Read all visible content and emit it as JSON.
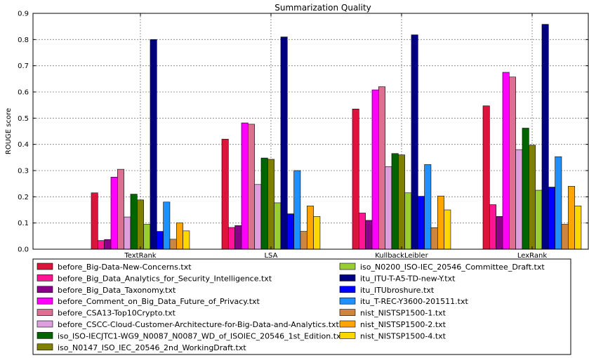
{
  "chart_data": {
    "type": "bar",
    "title": "Summarization Quality",
    "xlabel": "",
    "ylabel": "ROUGE score",
    "ylim": [
      0,
      0.9
    ],
    "yticks": [
      "0.0",
      "0.1",
      "0.2",
      "0.3",
      "0.4",
      "0.5",
      "0.6",
      "0.7",
      "0.8",
      "0.9"
    ],
    "grid": true,
    "legend_position": "bottom",
    "categories": [
      "TextRank",
      "LSA",
      "KullbackLeibler",
      "LexRank"
    ],
    "series": [
      {
        "name": "before_Big-Data-New-Concerns.txt",
        "color": "#dc143c",
        "values": [
          0.215,
          0.42,
          0.535,
          0.547
        ]
      },
      {
        "name": "before_Big_Data_Analytics_for_Security_Intelligence.txt",
        "color": "#ff1493",
        "values": [
          0.033,
          0.083,
          0.138,
          0.17
        ]
      },
      {
        "name": "before_Big_Data_Taxonomy.txt",
        "color": "#8b008b",
        "values": [
          0.037,
          0.09,
          0.11,
          0.125
        ]
      },
      {
        "name": "before_Comment_on_Big_Data_Future_of_Privacy.txt",
        "color": "#ff00ff",
        "values": [
          0.275,
          0.482,
          0.608,
          0.675
        ]
      },
      {
        "name": "before_CSA13-Top10Crypto.txt",
        "color": "#db7093",
        "values": [
          0.305,
          0.477,
          0.62,
          0.657
        ]
      },
      {
        "name": "before_CSCC-Cloud-Customer-Architecture-for-Big-Data-and-Analytics.txt",
        "color": "#dda0dd",
        "values": [
          0.123,
          0.247,
          0.315,
          0.38
        ]
      },
      {
        "name": "iso_ISO-IECJTC1-WG9_N0087_N0087_WD_of_ISOIEC_20546_1st_Edition.txt",
        "color": "#006400",
        "values": [
          0.21,
          0.348,
          0.365,
          0.462
        ]
      },
      {
        "name": "iso_N0147_ISO_IEC_20546_2nd_WorkingDraft.txt",
        "color": "#808000",
        "values": [
          0.188,
          0.343,
          0.36,
          0.397
        ]
      },
      {
        "name": "iso_N0200_ISO-IEC_20546_Committee_Draft.txt",
        "color": "#9acd32",
        "values": [
          0.095,
          0.177,
          0.215,
          0.225
        ]
      },
      {
        "name": "itu_ITU-T-A5-TD-new-Y.txt",
        "color": "#000080",
        "values": [
          0.8,
          0.81,
          0.818,
          0.858
        ]
      },
      {
        "name": "itu_ITUbroshure.txt",
        "color": "#0000ff",
        "values": [
          0.068,
          0.135,
          0.202,
          0.237
        ]
      },
      {
        "name": "itu_T-REC-Y3600-201511.txt",
        "color": "#1e90ff",
        "values": [
          0.18,
          0.3,
          0.323,
          0.353
        ]
      },
      {
        "name": "nist_NISTSP1500-1.txt",
        "color": "#cd853f",
        "values": [
          0.038,
          0.068,
          0.082,
          0.095
        ]
      },
      {
        "name": "nist_NISTSP1500-2.txt",
        "color": "#ffa500",
        "values": [
          0.1,
          0.165,
          0.203,
          0.24
        ]
      },
      {
        "name": "nist_NISTSP1500-4.txt",
        "color": "#ffd700",
        "values": [
          0.07,
          0.125,
          0.15,
          0.165
        ]
      }
    ]
  }
}
